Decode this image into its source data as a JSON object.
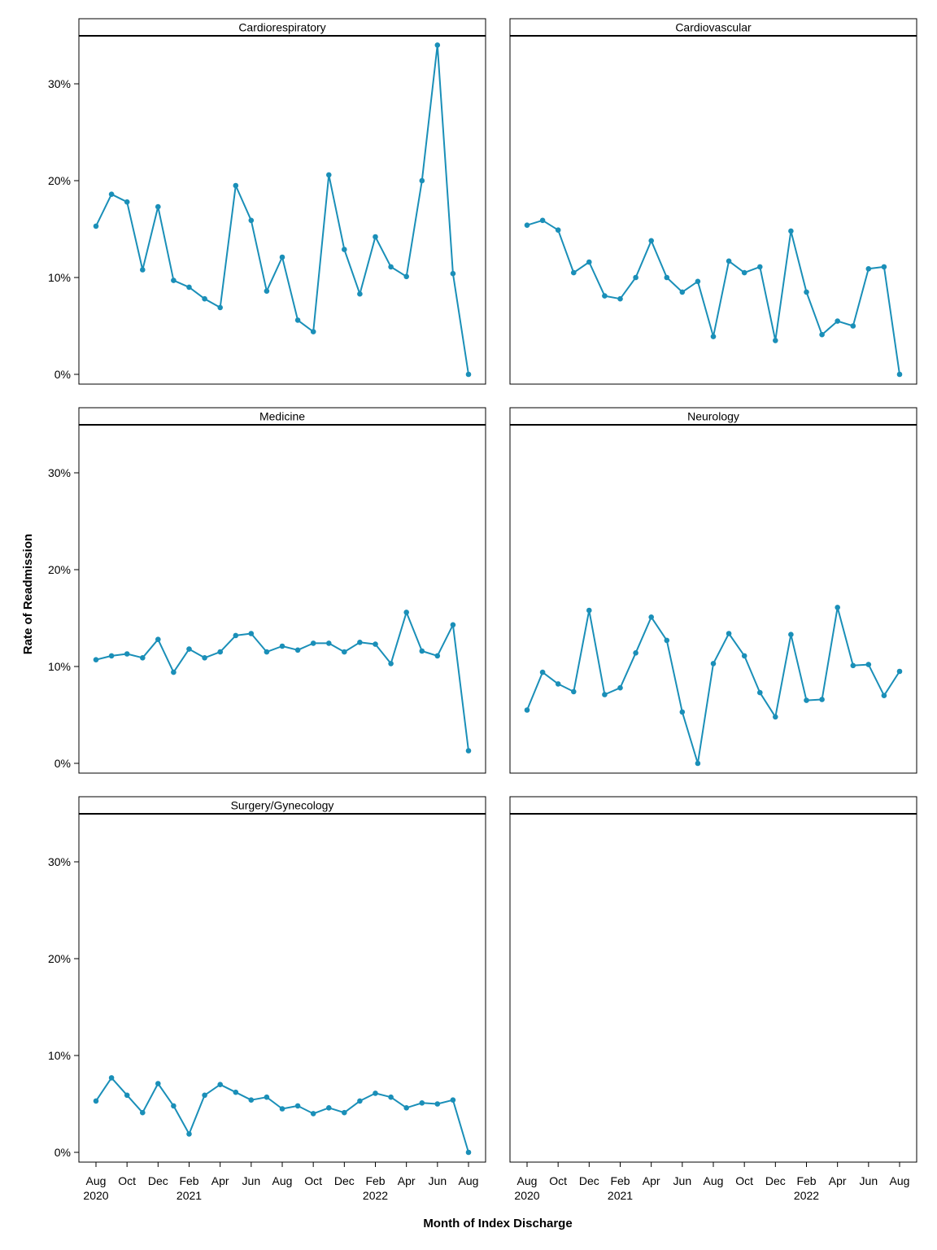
{
  "chart_data": {
    "type": "line",
    "layout": "faceted-3x2",
    "xlabel": "Month of Index Discharge",
    "ylabel": "Rate of Readmission",
    "ylim": [
      0,
      0.35
    ],
    "y_ticks": [
      "0%",
      "10%",
      "20%",
      "30%"
    ],
    "y_tick_values": [
      0,
      0.1,
      0.2,
      0.3
    ],
    "x": [
      "Aug 2020",
      "Sep 2020",
      "Oct 2020",
      "Nov 2020",
      "Dec 2020",
      "Jan 2021",
      "Feb 2021",
      "Mar 2021",
      "Apr 2021",
      "May 2021",
      "Jun 2021",
      "Jul 2021",
      "Aug 2021",
      "Sep 2021",
      "Oct 2021",
      "Nov 2021",
      "Dec 2021",
      "Jan 2022",
      "Feb 2022",
      "Mar 2022",
      "Apr 2022",
      "May 2022",
      "Jun 2022",
      "Jul 2022",
      "Aug 2022"
    ],
    "x_ticks": [
      {
        "month": "Aug",
        "year": "2020"
      },
      {
        "month": "Oct",
        "year": ""
      },
      {
        "month": "Dec",
        "year": ""
      },
      {
        "month": "Feb",
        "year": "2021"
      },
      {
        "month": "Apr",
        "year": ""
      },
      {
        "month": "Jun",
        "year": ""
      },
      {
        "month": "Aug",
        "year": ""
      },
      {
        "month": "Oct",
        "year": ""
      },
      {
        "month": "Dec",
        "year": ""
      },
      {
        "month": "Feb",
        "year": "2022"
      },
      {
        "month": "Apr",
        "year": ""
      },
      {
        "month": "Jun",
        "year": ""
      },
      {
        "month": "Aug",
        "year": ""
      }
    ],
    "line_color": "#1a8fb8",
    "grid": false,
    "panels": [
      {
        "title": "Cardiorespiratory",
        "values": [
          0.153,
          0.186,
          0.178,
          0.108,
          0.173,
          0.097,
          0.09,
          0.078,
          0.069,
          0.195,
          0.159,
          0.086,
          0.121,
          0.056,
          0.044,
          0.206,
          0.129,
          0.083,
          0.142,
          0.111,
          0.101,
          0.2,
          0.34,
          0.104,
          0.0
        ]
      },
      {
        "title": "Cardiovascular",
        "values": [
          0.154,
          0.159,
          0.149,
          0.105,
          0.116,
          0.081,
          0.078,
          0.1,
          0.138,
          0.1,
          0.085,
          0.096,
          0.039,
          0.117,
          0.105,
          0.111,
          0.035,
          0.148,
          0.085,
          0.041,
          0.055,
          0.05,
          0.109,
          0.111,
          0.0
        ]
      },
      {
        "title": "Medicine",
        "values": [
          0.107,
          0.111,
          0.113,
          0.109,
          0.128,
          0.094,
          0.118,
          0.109,
          0.115,
          0.132,
          0.134,
          0.115,
          0.121,
          0.117,
          0.124,
          0.124,
          0.115,
          0.125,
          0.123,
          0.103,
          0.156,
          0.116,
          0.111,
          0.143,
          0.013
        ]
      },
      {
        "title": "Neurology",
        "values": [
          0.055,
          0.094,
          0.082,
          0.074,
          0.158,
          0.071,
          0.078,
          0.114,
          0.151,
          0.127,
          0.053,
          0.0,
          0.103,
          0.134,
          0.111,
          0.073,
          0.048,
          0.133,
          0.065,
          0.066,
          0.161,
          0.101,
          0.102,
          0.07,
          0.095
        ]
      },
      {
        "title": "Surgery/Gynecology",
        "values": [
          0.053,
          0.077,
          0.059,
          0.041,
          0.071,
          0.048,
          0.019,
          0.059,
          0.07,
          0.062,
          0.054,
          0.057,
          0.045,
          0.048,
          0.04,
          0.046,
          0.041,
          0.053,
          0.061,
          0.057,
          0.046,
          0.051,
          0.05,
          0.054,
          0.0
        ]
      },
      {
        "title": "",
        "values": []
      }
    ]
  }
}
